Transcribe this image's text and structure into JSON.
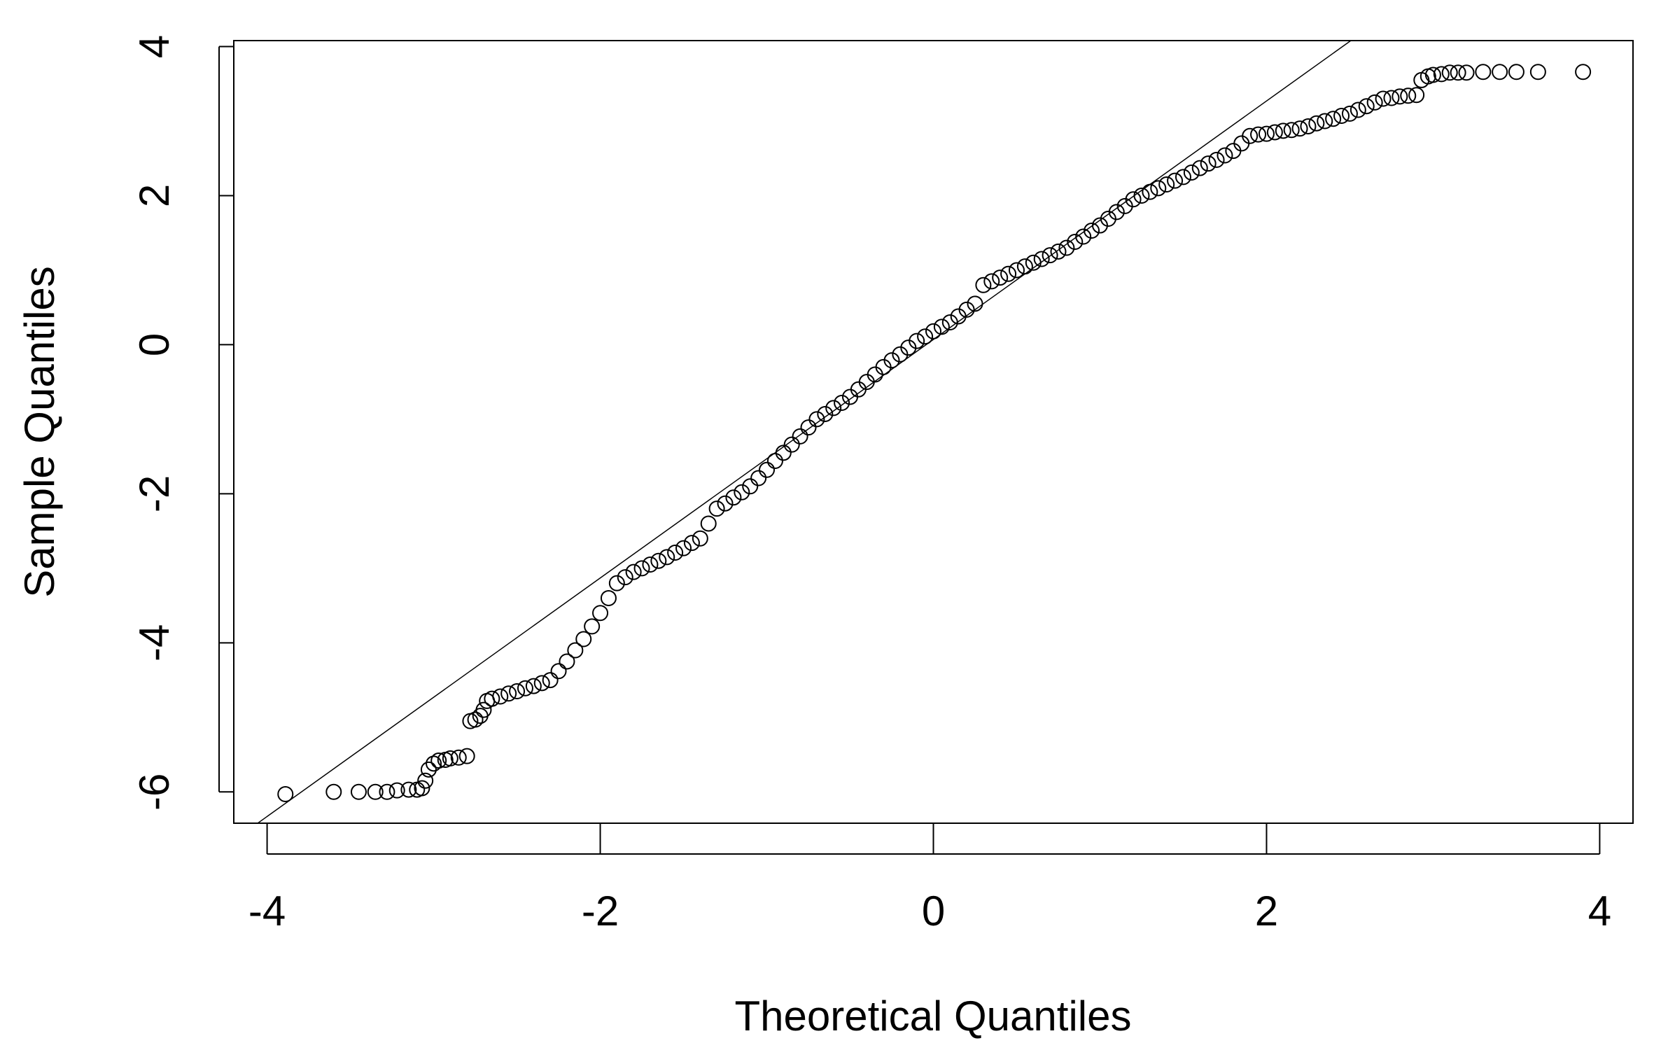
{
  "chart_data": {
    "type": "scatter",
    "x_label": "Theoretical Quantiles",
    "y_label": "Sample Quantiles",
    "xlim": [
      -4.2,
      4.2
    ],
    "ylim": [
      -6.42,
      4.08
    ],
    "xticks": [
      -4,
      -2,
      0,
      2,
      4
    ],
    "yticks": [
      -6,
      -4,
      -2,
      0,
      2,
      4
    ],
    "marker_color": "#000000",
    "reference_line": {
      "intercept": 0.07,
      "slope": 1.6
    },
    "x": [
      -3.89,
      -3.6,
      -3.45,
      -3.35,
      -3.28,
      -3.22,
      -3.15,
      -3.1,
      -3.07,
      -3.05,
      -3.03,
      -3.0,
      -2.97,
      -2.93,
      -2.9,
      -2.85,
      -2.8,
      -2.78,
      -2.75,
      -2.72,
      -2.7,
      -2.68,
      -2.65,
      -2.6,
      -2.55,
      -2.5,
      -2.45,
      -2.4,
      -2.35,
      -2.3,
      -2.25,
      -2.2,
      -2.15,
      -2.1,
      -2.05,
      -2.0,
      -1.95,
      -1.9,
      -1.85,
      -1.8,
      -1.75,
      -1.7,
      -1.65,
      -1.6,
      -1.55,
      -1.5,
      -1.45,
      -1.4,
      -1.35,
      -1.3,
      -1.25,
      -1.2,
      -1.15,
      -1.1,
      -1.05,
      -1.0,
      -0.95,
      -0.9,
      -0.85,
      -0.8,
      -0.75,
      -0.7,
      -0.65,
      -0.6,
      -0.55,
      -0.5,
      -0.45,
      -0.4,
      -0.35,
      -0.3,
      -0.25,
      -0.2,
      -0.15,
      -0.1,
      -0.05,
      0,
      0.05,
      0.1,
      0.15,
      0.2,
      0.25,
      0.3,
      0.35,
      0.4,
      0.45,
      0.5,
      0.55,
      0.6,
      0.65,
      0.7,
      0.75,
      0.8,
      0.85,
      0.9,
      0.95,
      1.0,
      1.05,
      1.1,
      1.15,
      1.2,
      1.25,
      1.3,
      1.35,
      1.4,
      1.45,
      1.5,
      1.55,
      1.6,
      1.65,
      1.7,
      1.75,
      1.8,
      1.85,
      1.9,
      1.95,
      2.0,
      2.05,
      2.1,
      2.15,
      2.2,
      2.25,
      2.3,
      2.35,
      2.4,
      2.45,
      2.5,
      2.55,
      2.6,
      2.65,
      2.7,
      2.75,
      2.8,
      2.85,
      2.9,
      2.93,
      2.97,
      3.0,
      3.05,
      3.1,
      3.15,
      3.2,
      3.3,
      3.4,
      3.5,
      3.63,
      3.9
    ],
    "values": [
      -6.03,
      -6.0,
      -6.0,
      -6.0,
      -6.0,
      -5.98,
      -5.97,
      -5.97,
      -5.95,
      -5.85,
      -5.7,
      -5.62,
      -5.58,
      -5.57,
      -5.55,
      -5.54,
      -5.52,
      -5.05,
      -5.03,
      -4.98,
      -4.9,
      -4.78,
      -4.75,
      -4.72,
      -4.68,
      -4.65,
      -4.61,
      -4.58,
      -4.54,
      -4.5,
      -4.38,
      -4.25,
      -4.1,
      -3.95,
      -3.78,
      -3.6,
      -3.4,
      -3.2,
      -3.12,
      -3.05,
      -3.0,
      -2.95,
      -2.9,
      -2.85,
      -2.79,
      -2.73,
      -2.66,
      -2.6,
      -2.4,
      -2.2,
      -2.13,
      -2.05,
      -1.98,
      -1.9,
      -1.79,
      -1.68,
      -1.56,
      -1.45,
      -1.34,
      -1.23,
      -1.11,
      -1.0,
      -0.93,
      -0.85,
      -0.78,
      -0.7,
      -0.6,
      -0.5,
      -0.4,
      -0.3,
      -0.21,
      -0.13,
      -0.04,
      0.05,
      0.11,
      0.18,
      0.24,
      0.3,
      0.38,
      0.47,
      0.55,
      0.8,
      0.85,
      0.9,
      0.95,
      1.0,
      1.05,
      1.1,
      1.15,
      1.2,
      1.25,
      1.3,
      1.38,
      1.45,
      1.53,
      1.6,
      1.69,
      1.78,
      1.86,
      1.95,
      2.0,
      2.05,
      2.1,
      2.15,
      2.2,
      2.25,
      2.31,
      2.37,
      2.43,
      2.48,
      2.54,
      2.6,
      2.7,
      2.8,
      2.82,
      2.83,
      2.85,
      2.87,
      2.88,
      2.9,
      2.93,
      2.97,
      3.0,
      3.03,
      3.07,
      3.1,
      3.15,
      3.2,
      3.25,
      3.3,
      3.31,
      3.33,
      3.34,
      3.35,
      3.55,
      3.6,
      3.62,
      3.63,
      3.65,
      3.65,
      3.65,
      3.66,
      3.66,
      3.66,
      3.66,
      3.66
    ]
  }
}
